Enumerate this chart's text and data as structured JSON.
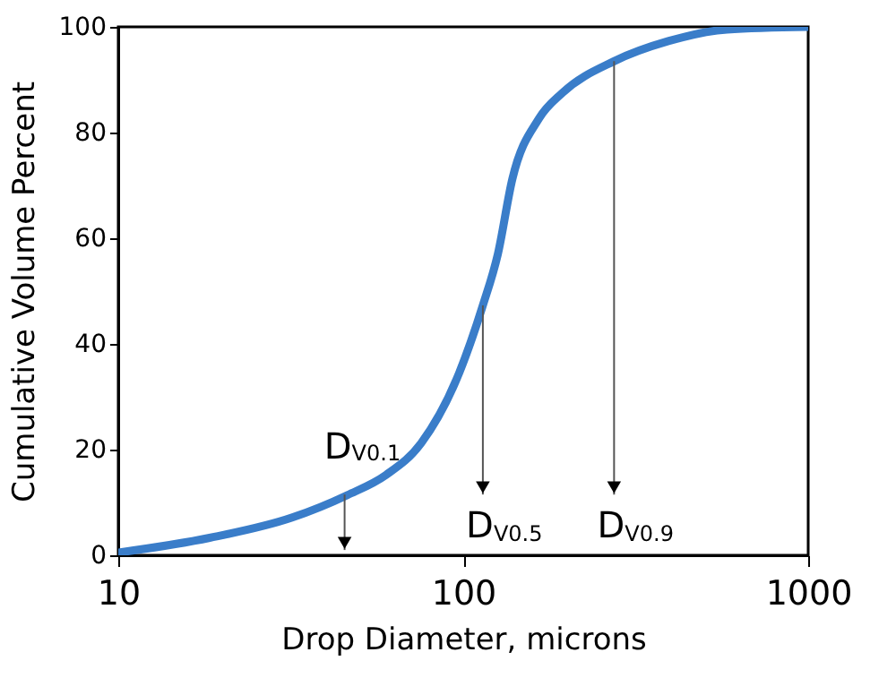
{
  "chart_data": {
    "type": "line",
    "xlabel": "Drop Diameter, microns",
    "ylabel": "Cumulative Volume Percent",
    "log": "x",
    "xlim": [
      10,
      1000
    ],
    "xticks": [
      10,
      100,
      1000
    ],
    "ylim": [
      0,
      100
    ],
    "yticks": [
      0,
      20,
      40,
      60,
      80,
      100
    ],
    "grid": false,
    "marker": "none",
    "line_style": "solid",
    "series": [
      {
        "color": "#3a7dc9",
        "x": [
          10,
          18.4,
          31.8,
          46.2,
          59.7,
          75.5,
          95.5,
          114,
          126,
          138.8,
          165.6,
          193.8,
          273.7,
          393,
          582,
          1000
        ],
        "values": [
          0.5,
          3.3,
          7.1,
          11.4,
          15.2,
          21.2,
          33.2,
          47.3,
          57,
          71.2,
          82.6,
          87.5,
          93.5,
          97.3,
          99.5,
          100
        ]
      }
    ],
    "annotations": [
      {
        "text": "D$_{V0.1}$",
        "x": 45.3,
        "y": 11.5
      },
      {
        "text": "D$_{V0.5}$",
        "x": 114,
        "y": 47.3
      },
      {
        "text": "D$_{V0.9}$",
        "x": 273.7,
        "y": 93.5
      }
    ]
  }
}
